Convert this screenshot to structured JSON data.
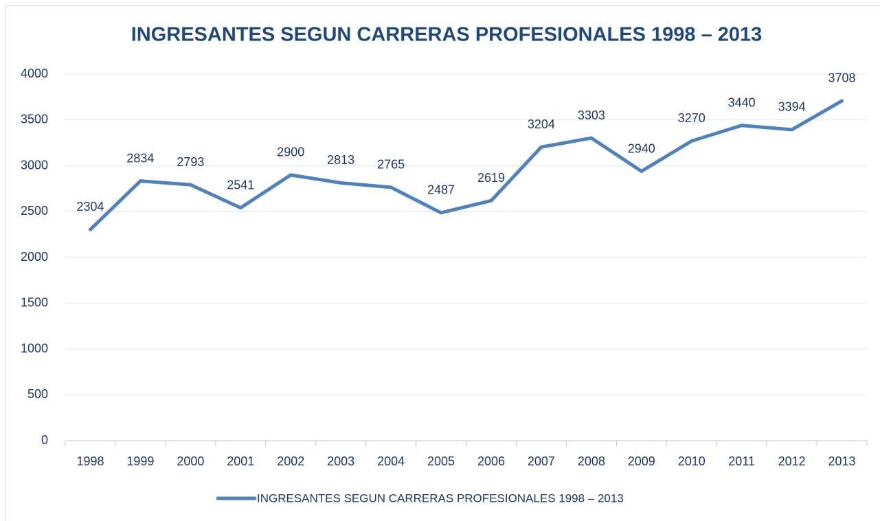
{
  "chart_data": {
    "type": "line",
    "title": "INGRESANTES SEGUN CARRERAS PROFESIONALES 1998 – 2013",
    "categories": [
      "1998",
      "1999",
      "2000",
      "2001",
      "2002",
      "2003",
      "2004",
      "2005",
      "2006",
      "2007",
      "2008",
      "2009",
      "2010",
      "2011",
      "2012",
      "2013"
    ],
    "series": [
      {
        "name": "INGRESANTES SEGUN CARRERAS PROFESIONALES 1998 – 2013",
        "color": "#4f81bd",
        "values": [
          2304,
          2834,
          2793,
          2541,
          2900,
          2813,
          2765,
          2487,
          2619,
          3204,
          3303,
          2940,
          3270,
          3440,
          3394,
          3708
        ]
      }
    ],
    "ylim": [
      0,
      4000
    ],
    "yticks": [
      0,
      500,
      1000,
      1500,
      2000,
      2500,
      3000,
      3500,
      4000
    ],
    "grid": true,
    "legend": "bottom",
    "data_labels": true
  }
}
